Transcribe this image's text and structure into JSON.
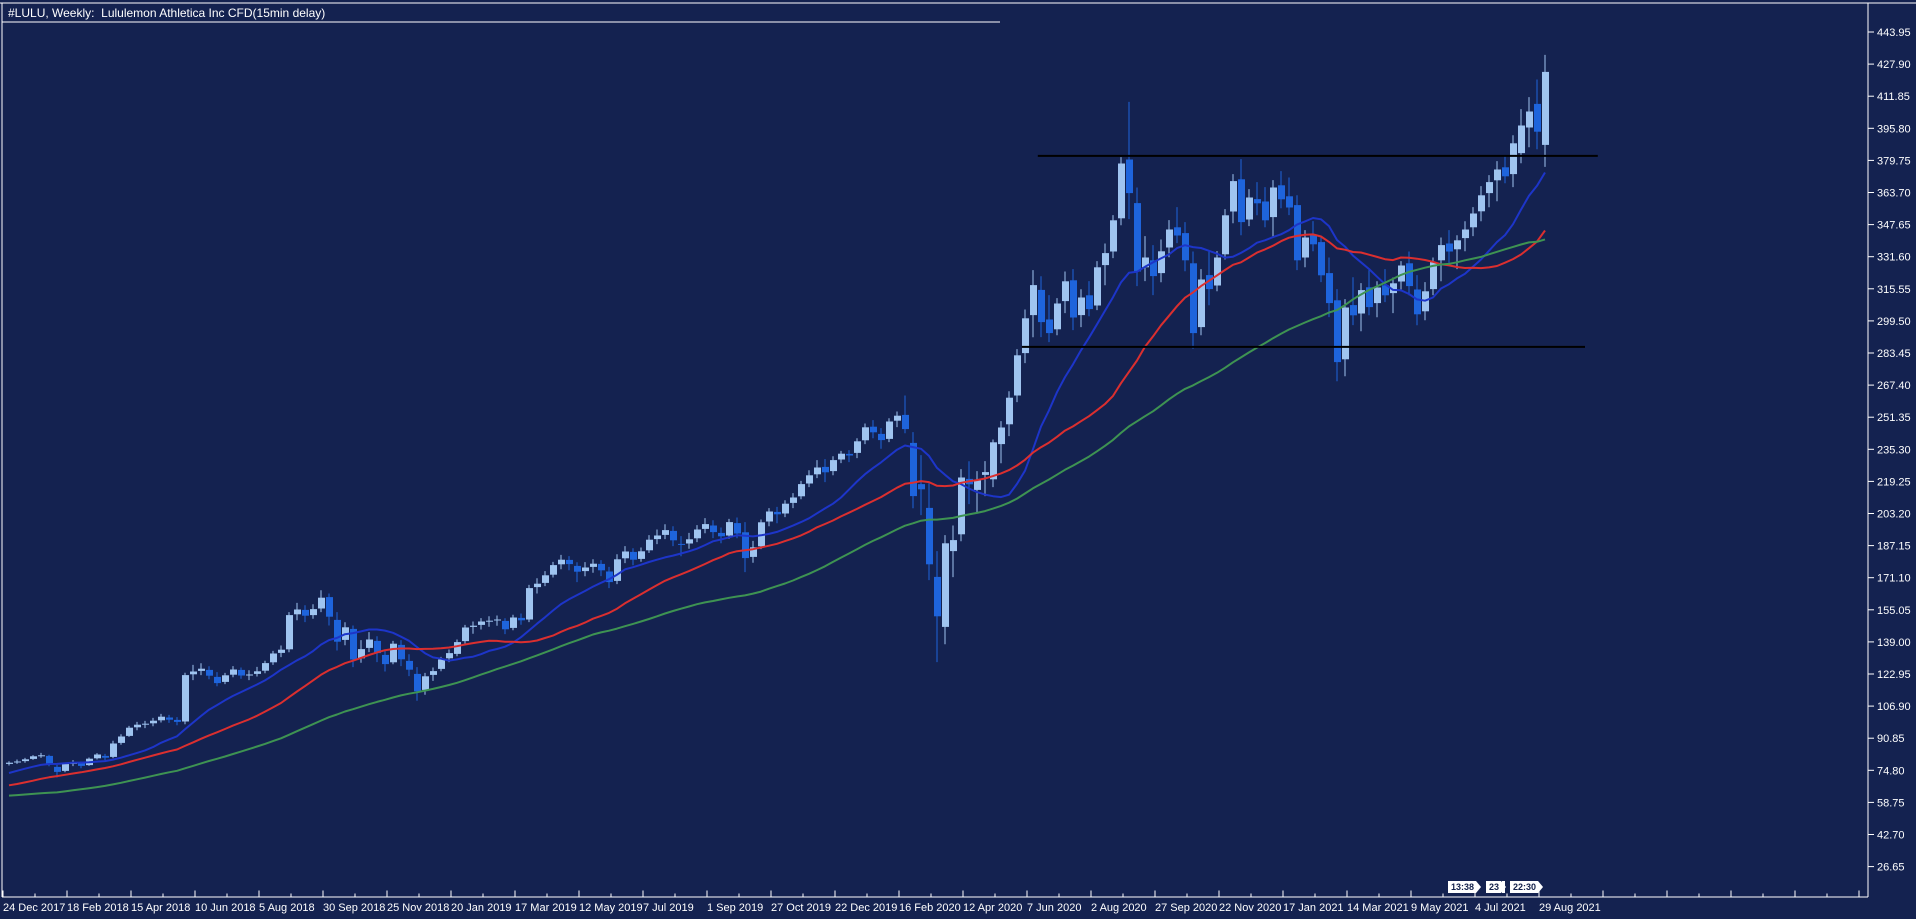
{
  "title": "#LULU, Weekly:  Lululemon Athletica Inc CFD(15min delay)",
  "colors": {
    "background": "#142250",
    "frame": "#ffffff",
    "axis_text": "#ffffff",
    "bull_candle": "#9fc4f0",
    "bear_candle": "#1e64dc",
    "ma_fast": "#1d35c9",
    "ma_mid": "#db2f2f",
    "ma_slow": "#3e9352",
    "trendline": "#000000",
    "badge_bg": "#ffffff",
    "badge_text": "#13204a"
  },
  "price_axis": {
    "labels": [
      "443.95",
      "427.90",
      "411.85",
      "395.80",
      "379.75",
      "363.70",
      "347.65",
      "331.60",
      "315.55",
      "299.50",
      "283.45",
      "267.40",
      "251.35",
      "235.30",
      "219.25",
      "203.20",
      "187.15",
      "171.10",
      "155.05",
      "139.00",
      "122.95",
      "106.90",
      "90.85",
      "74.80",
      "58.75",
      "42.70",
      "26.65"
    ]
  },
  "time_axis": {
    "labels": [
      "24 Dec 2017",
      "18 Feb 2018",
      "15 Apr 2018",
      "10 Jun 2018",
      "5 Aug 2018",
      "30 Sep 2018",
      "25 Nov 2018",
      "20 Jan 2019",
      "17 Mar 2019",
      "12 May 2019",
      "7 Jul 2019",
      "1 Sep 2019",
      "27 Oct 2019",
      "22 Dec 2019",
      "16 Feb 2020",
      "12 Apr 2020",
      "7 Jun 2020",
      "2 Aug 2020",
      "27 Sep 2020",
      "22 Nov 2020",
      "17 Jan 2021",
      "14 Mar 2021",
      "9 May 2021",
      "4 Jul 2021",
      "29 Aug 2021"
    ]
  },
  "markers": {
    "badges": [
      "13:38",
      "23",
      "22:30"
    ]
  },
  "chart_data": {
    "type": "candlestick",
    "symbol": "#LULU",
    "timeframe": "Weekly",
    "description": "Lululemon Athletica Inc CFD",
    "delay": "15min delay",
    "axis_top_price": 443.95,
    "axis_bottom_price": 26.65,
    "axis_step": 16.05,
    "start_week_label": "24 Dec 2017",
    "end_week_label": "29 Aug 2021",
    "hlines": [
      {
        "price": 382.0,
        "from_week": 128.6,
        "to_week": 198.6
      },
      {
        "price": 286.5,
        "from_week": 126.6,
        "to_week": 197.0
      }
    ],
    "moving_averages": [
      {
        "period": 13,
        "color": "#1d35c9"
      },
      {
        "period": 26,
        "color": "#db2f2f"
      },
      {
        "period": 52,
        "color": "#3e9352"
      }
    ],
    "prehistory_closes": [
      66.2,
      65.4,
      64.8,
      66.1,
      65.3,
      66.4,
      64.2,
      52.3,
      51.1,
      50.4,
      51.8,
      53.2,
      51.4,
      49.3,
      48.2,
      50.1,
      52.3,
      53.8,
      53.1,
      55.2,
      57.4,
      58.9,
      58.2,
      60.1,
      61.3,
      60.4,
      61.9,
      61.2,
      60.3,
      59.4,
      58.3,
      57.4,
      59.2,
      60.8,
      61.9,
      61.2,
      62.8,
      62.1,
      63.9,
      65.8,
      65.1,
      66.9,
      68.8,
      70.2,
      71.9,
      73.8,
      73.1,
      74.9,
      76.8,
      77.9,
      78.8,
      78.2
    ],
    "weeks": [
      [
        78.0,
        79.3,
        77.2,
        78.6
      ],
      [
        78.8,
        80.2,
        78.0,
        79.2
      ],
      [
        79.4,
        81.0,
        78.6,
        80.3
      ],
      [
        80.5,
        82.4,
        80.0,
        81.8
      ],
      [
        82.0,
        83.5,
        81.0,
        82.3
      ],
      [
        82.0,
        82.6,
        76.8,
        77.9
      ],
      [
        76.5,
        77.5,
        71.2,
        74.0
      ],
      [
        74.5,
        78.6,
        73.8,
        77.9
      ],
      [
        78.0,
        79.9,
        76.9,
        78.7
      ],
      [
        78.5,
        79.2,
        75.8,
        77.0
      ],
      [
        77.4,
        81.2,
        77.0,
        80.6
      ],
      [
        80.8,
        83.4,
        80.2,
        82.7
      ],
      [
        82.0,
        83.0,
        79.8,
        81.1
      ],
      [
        81.5,
        89.6,
        80.9,
        88.2
      ],
      [
        88.5,
        92.8,
        87.6,
        91.7
      ],
      [
        92.0,
        97.0,
        91.5,
        96.1
      ],
      [
        96.3,
        99.0,
        94.8,
        97.6
      ],
      [
        97.8,
        99.5,
        95.9,
        98.1
      ],
      [
        98.3,
        101.0,
        96.8,
        99.6
      ],
      [
        99.8,
        103.0,
        98.7,
        101.6
      ],
      [
        101.2,
        102.5,
        98.5,
        100.1
      ],
      [
        100.0,
        101.4,
        97.3,
        99.0
      ],
      [
        99.2,
        123.6,
        97.8,
        122.4
      ],
      [
        122.8,
        127.5,
        119.9,
        124.2
      ],
      [
        124.5,
        128.3,
        122.4,
        125.6
      ],
      [
        125.0,
        126.8,
        120.3,
        122.1
      ],
      [
        121.5,
        123.9,
        116.8,
        118.4
      ],
      [
        119.0,
        123.5,
        117.9,
        122.3
      ],
      [
        122.6,
        126.9,
        121.3,
        125.2
      ],
      [
        125.0,
        126.2,
        120.6,
        122.2
      ],
      [
        122.4,
        124.8,
        119.9,
        122.7
      ],
      [
        123.0,
        126.5,
        121.7,
        124.3
      ],
      [
        124.6,
        129.6,
        123.3,
        128.4
      ],
      [
        128.8,
        134.5,
        127.5,
        133.2
      ],
      [
        133.5,
        137.2,
        131.4,
        135.1
      ],
      [
        135.3,
        153.9,
        133.8,
        152.4
      ],
      [
        152.8,
        158.5,
        149.8,
        155.2
      ],
      [
        155.0,
        157.3,
        148.9,
        152.1
      ],
      [
        152.4,
        157.8,
        150.6,
        155.4
      ],
      [
        155.7,
        164.8,
        153.9,
        161.1
      ],
      [
        161.4,
        163.2,
        147.2,
        151.6
      ],
      [
        150.0,
        153.9,
        134.7,
        139.1
      ],
      [
        140.0,
        148.8,
        137.3,
        146.3
      ],
      [
        145.5,
        147.2,
        126.4,
        130.2
      ],
      [
        130.8,
        139.9,
        128.6,
        135.4
      ],
      [
        136.0,
        143.9,
        133.9,
        140.2
      ],
      [
        139.5,
        141.8,
        128.9,
        133.4
      ],
      [
        132.5,
        134.9,
        124.2,
        127.9
      ],
      [
        128.8,
        139.5,
        127.8,
        138.1
      ],
      [
        137.5,
        139.9,
        126.9,
        130.3
      ],
      [
        129.5,
        132.8,
        121.9,
        125.1
      ],
      [
        123.0,
        126.4,
        109.6,
        114.3
      ],
      [
        115.0,
        123.5,
        112.6,
        121.8
      ],
      [
        122.5,
        126.2,
        119.5,
        124.4
      ],
      [
        125.5,
        131.5,
        124.3,
        130.2
      ],
      [
        130.8,
        135.2,
        128.9,
        133.4
      ],
      [
        133.0,
        140.2,
        131.8,
        138.9
      ],
      [
        139.4,
        147.5,
        138.2,
        146.2
      ],
      [
        146.5,
        149.2,
        143.1,
        147.1
      ],
      [
        147.5,
        150.9,
        145.2,
        149.2
      ],
      [
        149.4,
        151.8,
        146.6,
        149.6
      ],
      [
        149.8,
        152.2,
        147.1,
        150.2
      ],
      [
        149.5,
        150.8,
        142.9,
        145.3
      ],
      [
        146.0,
        152.6,
        144.8,
        151.2
      ],
      [
        151.0,
        153.2,
        147.6,
        149.8
      ],
      [
        150.2,
        167.5,
        148.9,
        165.9
      ],
      [
        166.4,
        170.8,
        163.2,
        168.1
      ],
      [
        168.5,
        174.4,
        166.9,
        172.3
      ],
      [
        172.6,
        179.0,
        171.2,
        177.4
      ],
      [
        177.8,
        182.5,
        175.3,
        180.1
      ],
      [
        180.0,
        181.9,
        174.8,
        177.9
      ],
      [
        177.0,
        178.8,
        168.9,
        174.1
      ],
      [
        174.4,
        178.9,
        171.8,
        176.2
      ],
      [
        176.5,
        180.3,
        173.6,
        178.1
      ],
      [
        178.0,
        179.9,
        171.9,
        174.8
      ],
      [
        174.2,
        176.5,
        165.9,
        168.9
      ],
      [
        169.5,
        182.8,
        167.9,
        180.3
      ],
      [
        180.8,
        186.9,
        178.4,
        184.2
      ],
      [
        184.0,
        185.8,
        177.3,
        180.1
      ],
      [
        180.5,
        186.2,
        179.1,
        184.3
      ],
      [
        184.8,
        192.4,
        183.5,
        190.1
      ],
      [
        190.4,
        195.2,
        187.9,
        192.2
      ],
      [
        192.5,
        197.8,
        190.4,
        194.9
      ],
      [
        194.5,
        196.8,
        186.9,
        189.8
      ],
      [
        188.0,
        191.9,
        181.8,
        187.7
      ],
      [
        188.2,
        193.5,
        185.6,
        190.3
      ],
      [
        190.8,
        197.4,
        188.9,
        195.2
      ],
      [
        195.5,
        200.9,
        193.3,
        197.9
      ],
      [
        197.2,
        199.8,
        190.9,
        193.9
      ],
      [
        193.5,
        196.2,
        188.3,
        191.8
      ],
      [
        192.2,
        200.5,
        190.6,
        198.9
      ],
      [
        198.4,
        201.2,
        190.8,
        193.2
      ],
      [
        193.8,
        198.9,
        173.9,
        180.9
      ],
      [
        181.5,
        189.5,
        178.6,
        186.3
      ],
      [
        186.8,
        200.2,
        185.4,
        198.8
      ],
      [
        199.2,
        205.9,
        196.8,
        204.2
      ],
      [
        204.0,
        206.5,
        198.3,
        202.8
      ],
      [
        203.2,
        209.8,
        201.4,
        208.1
      ],
      [
        208.5,
        213.4,
        205.9,
        211.2
      ],
      [
        211.8,
        219.5,
        210.3,
        217.9
      ],
      [
        218.2,
        224.8,
        216.4,
        222.3
      ],
      [
        222.8,
        229.9,
        220.9,
        226.2
      ],
      [
        226.5,
        230.4,
        218.9,
        223.8
      ],
      [
        224.4,
        231.8,
        222.3,
        229.9
      ],
      [
        230.2,
        234.5,
        228.4,
        233.1
      ],
      [
        233.0,
        234.9,
        228.9,
        232.2
      ],
      [
        233.5,
        240.8,
        230.9,
        239.3
      ],
      [
        239.8,
        248.2,
        237.9,
        246.3
      ],
      [
        246.6,
        249.9,
        240.8,
        243.8
      ],
      [
        243.0,
        245.9,
        235.6,
        239.9
      ],
      [
        240.5,
        250.8,
        238.9,
        249.2
      ],
      [
        249.6,
        254.2,
        246.4,
        252.1
      ],
      [
        252.5,
        262.2,
        243.3,
        245.4
      ],
      [
        238.5,
        243.9,
        205.8,
        211.9
      ],
      [
        217.9,
        232.4,
        202.4,
        215.3
      ],
      [
        206.0,
        218.4,
        169.9,
        177.8
      ],
      [
        171.5,
        184.4,
        128.9,
        151.8
      ],
      [
        146.5,
        192.4,
        137.8,
        188.3
      ],
      [
        184.4,
        197.2,
        171.4,
        189.9
      ],
      [
        192.8,
        225.4,
        189.3,
        221.2
      ],
      [
        220.5,
        229.3,
        207.9,
        217.8
      ],
      [
        215.0,
        224.4,
        203.4,
        219.8
      ],
      [
        222.5,
        229.4,
        211.9,
        223.9
      ],
      [
        220.3,
        240.2,
        216.4,
        238.8
      ],
      [
        237.9,
        249.4,
        228.3,
        246.2
      ],
      [
        247.8,
        264.3,
        241.9,
        261.1
      ],
      [
        262.2,
        285.4,
        258.9,
        282.3
      ],
      [
        283.4,
        305.2,
        278.4,
        300.8
      ],
      [
        302.4,
        324.9,
        291.3,
        317.4
      ],
      [
        315.0,
        321.8,
        291.4,
        298.9
      ],
      [
        300.2,
        312.4,
        288.9,
        293.4
      ],
      [
        295.3,
        310.9,
        292.3,
        308.2
      ],
      [
        309.4,
        324.2,
        303.4,
        319.3
      ],
      [
        319.8,
        325.4,
        294.9,
        301.2
      ],
      [
        302.4,
        315.3,
        296.4,
        311.2
      ],
      [
        312.3,
        319.4,
        301.8,
        305.4
      ],
      [
        307.2,
        329.4,
        304.9,
        326.3
      ],
      [
        327.4,
        338.2,
        317.3,
        333.4
      ],
      [
        334.2,
        352.4,
        330.9,
        349.8
      ],
      [
        350.8,
        381.4,
        347.3,
        378.2
      ],
      [
        380.2,
        409.0,
        350.4,
        363.4
      ],
      [
        358.4,
        366.2,
        316.9,
        324.2
      ],
      [
        326.3,
        341.9,
        319.4,
        331.2
      ],
      [
        329.8,
        337.4,
        312.4,
        321.9
      ],
      [
        323.4,
        340.2,
        318.8,
        334.3
      ],
      [
        336.2,
        349.9,
        331.3,
        345.2
      ],
      [
        346.3,
        356.4,
        338.4,
        342.2
      ],
      [
        343.4,
        348.9,
        324.3,
        329.8
      ],
      [
        328.3,
        334.2,
        285.6,
        293.4
      ],
      [
        296.4,
        325.4,
        292.3,
        320.2
      ],
      [
        322.4,
        334.9,
        307.3,
        315.4
      ],
      [
        317.2,
        334.4,
        314.3,
        331.2
      ],
      [
        332.8,
        355.4,
        330.2,
        352.3
      ],
      [
        354.2,
        372.9,
        348.3,
        369.4
      ],
      [
        370.3,
        380.4,
        342.3,
        348.9
      ],
      [
        350.2,
        365.4,
        346.9,
        361.2
      ],
      [
        360.4,
        368.9,
        352.3,
        358.3
      ],
      [
        359.2,
        366.4,
        346.3,
        349.8
      ],
      [
        351.4,
        369.9,
        341.3,
        366.2
      ],
      [
        367.3,
        374.4,
        355.8,
        360.3
      ],
      [
        361.8,
        371.2,
        352.4,
        356.2
      ],
      [
        357.4,
        362.3,
        324.9,
        329.8
      ],
      [
        331.2,
        344.9,
        326.3,
        341.2
      ],
      [
        342.3,
        349.4,
        334.3,
        337.8
      ],
      [
        338.9,
        342.2,
        318.9,
        322.3
      ],
      [
        323.4,
        331.2,
        301.4,
        308.4
      ],
      [
        309.8,
        315.4,
        269.3,
        278.9
      ],
      [
        280.3,
        310.4,
        271.8,
        306.2
      ],
      [
        307.4,
        321.3,
        297.4,
        302.3
      ],
      [
        303.2,
        318.4,
        294.3,
        314.9
      ],
      [
        316.3,
        324.9,
        302.3,
        306.4
      ],
      [
        308.4,
        319.3,
        301.3,
        316.2
      ],
      [
        317.3,
        325.4,
        308.9,
        312.3
      ],
      [
        313.4,
        321.2,
        303.4,
        318.3
      ],
      [
        319.2,
        329.4,
        314.3,
        327.2
      ],
      [
        328.3,
        334.2,
        312.3,
        316.9
      ],
      [
        315.2,
        322.4,
        297.3,
        302.8
      ],
      [
        304.3,
        318.9,
        299.8,
        314.3
      ],
      [
        315.4,
        331.2,
        312.4,
        328.9
      ],
      [
        329.8,
        341.2,
        319.3,
        337.4
      ],
      [
        338.2,
        344.9,
        328.3,
        334.2
      ],
      [
        335.3,
        342.3,
        325.4,
        339.8
      ],
      [
        340.9,
        349.3,
        334.3,
        345.2
      ],
      [
        346.3,
        356.4,
        341.9,
        353.2
      ],
      [
        354.3,
        366.9,
        349.3,
        362.3
      ],
      [
        363.4,
        372.4,
        356.3,
        368.9
      ],
      [
        369.8,
        379.4,
        359.3,
        375.2
      ],
      [
        376.3,
        382.4,
        368.3,
        371.8
      ],
      [
        372.9,
        392.3,
        366.4,
        388.3
      ],
      [
        383.4,
        405.4,
        378.3,
        397.2
      ],
      [
        396.2,
        411.4,
        386.3,
        404.2
      ],
      [
        408.0,
        420.2,
        385.3,
        394.1
      ],
      [
        387.5,
        432.5,
        376.5,
        424.0
      ]
    ]
  }
}
